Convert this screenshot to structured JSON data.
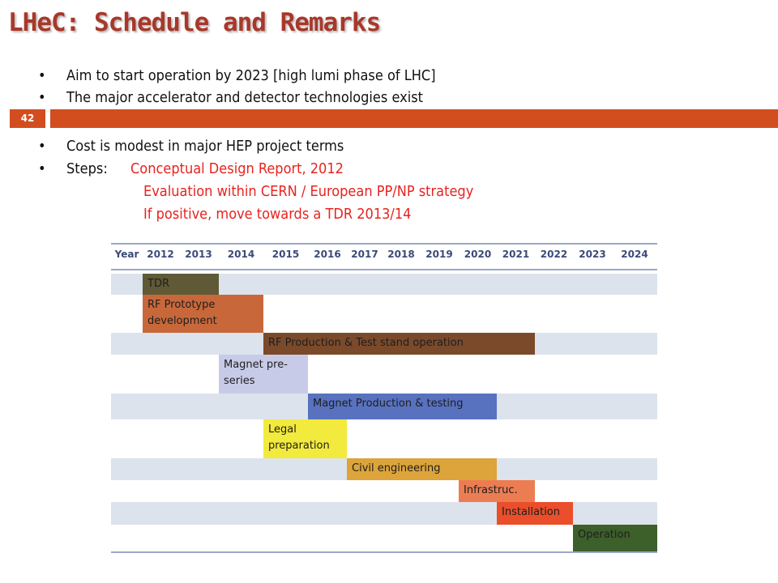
{
  "title": "LHeC: Schedule and Remarks",
  "slide_number": "42",
  "bullets": [
    "Aim to start operation by 2023 [high lumi phase of LHC]",
    "The major accelerator and detector technologies exist",
    "Cost is modest in major HEP project terms"
  ],
  "steps": {
    "label": "Steps:",
    "items": [
      "Conceptual Design Report, 2012",
      "Evaluation within CERN / European PP/NP strategy",
      "If positive, move towards a TDR 2013/14"
    ]
  },
  "gantt": {
    "header": "Year",
    "years": [
      "2012",
      "2013",
      "2014",
      "2015",
      "2016",
      "2017",
      "2018",
      "2019",
      "2020",
      "2021",
      "2022",
      "2023",
      "2024"
    ],
    "tasks": [
      {
        "label": "TDR",
        "color": "#5f5a35"
      },
      {
        "label": "RF Prototype development",
        "color": "#c8683a"
      },
      {
        "label": "RF Production  & Test stand operation",
        "color": "#7b4a2b"
      },
      {
        "label": "Magnet pre-series",
        "color": "#c8cbe8"
      },
      {
        "label": "Magnet Production & testing",
        "color": "#5872c0"
      },
      {
        "label": "Legal preparation",
        "color": "#f2ea3c"
      },
      {
        "label": "Civil engineering",
        "color": "#dca43a"
      },
      {
        "label": "Infrastruc.",
        "color": "#ec7d52"
      },
      {
        "label": "Installation",
        "color": "#ea4e2a"
      },
      {
        "label": "Operation",
        "color": "#3d5f2a"
      }
    ]
  }
}
